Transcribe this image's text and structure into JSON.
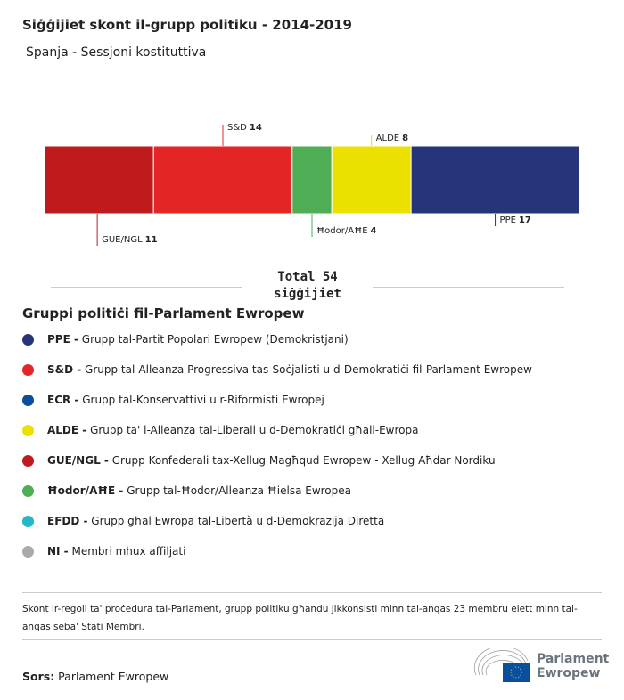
{
  "title": "Siġġijiet skont il-grupp politiku - 2014-2019",
  "subtitle": "Spanja - Sessjoni kostituttiva",
  "chart_data": {
    "type": "bar",
    "orientation": "horizontal-stacked",
    "total": 54,
    "series": [
      {
        "name": "GUE/NGL",
        "value": 11,
        "color": "#c01b1c",
        "label_pos": "below"
      },
      {
        "name": "S&D",
        "value": 14,
        "color": "#e42525",
        "label_pos": "above"
      },
      {
        "name": "Ħodor/AĦE",
        "value": 4,
        "color": "#4fad56",
        "label_pos": "below"
      },
      {
        "name": "ALDE",
        "value": 8,
        "color": "#ece000",
        "label_pos": "above"
      },
      {
        "name": "PPE",
        "value": 17,
        "color": "#263479",
        "label_pos": "below"
      }
    ]
  },
  "total_label": "Total 54",
  "total_unit": "siġġijiet",
  "legend": {
    "title": "Gruppi politiċi fil-Parlament Ewropew",
    "items": [
      {
        "abbr": "PPE -",
        "desc": " Grupp tal-Partit Popolari Ewropew (Demokristjani)",
        "color": "#263479"
      },
      {
        "abbr": "S&D -",
        "desc": " Grupp tal-Alleanza Progressiva tas-Soċjalisti u d-Demokratiċi fil-Parlament Ewropew",
        "color": "#e42525"
      },
      {
        "abbr": "ECR -",
        "desc": " Grupp tal-Konservattivi u r-Riformisti Ewropej",
        "color": "#0a4f9e"
      },
      {
        "abbr": "ALDE -",
        "desc": " Grupp ta' l-Alleanza tal-Liberali u d-Demokratiċi għall-Ewropa",
        "color": "#ece000"
      },
      {
        "abbr": "GUE/NGL -",
        "desc": " Grupp Konfederali tax-Xellug Magħqud Ewropew - Xellug Aħdar Nordiku",
        "color": "#c01b1c"
      },
      {
        "abbr": "Ħodor/AĦE -",
        "desc": " Grupp tal-Ħodor/Alleanza Ħielsa Ewropea",
        "color": "#4fad56"
      },
      {
        "abbr": "EFDD -",
        "desc": " Grupp għal Ewropa tal-Libertà u d-Demokrazija Diretta",
        "color": "#24b8c6"
      },
      {
        "abbr": "NI -",
        "desc": " Membri mhux affiljati",
        "color": "#aaaaaa"
      }
    ]
  },
  "note": "Skont ir-regoli ta' proċedura tal-Parlament, grupp politiku għandu jikkonsisti minn tal-anqas 23 membru elett minn tal-anqas seba' Stati Membri.",
  "source_label": "Sors:",
  "source": " Parlament Ewropew",
  "logo_text": [
    "Parlament",
    "Ewropew"
  ]
}
